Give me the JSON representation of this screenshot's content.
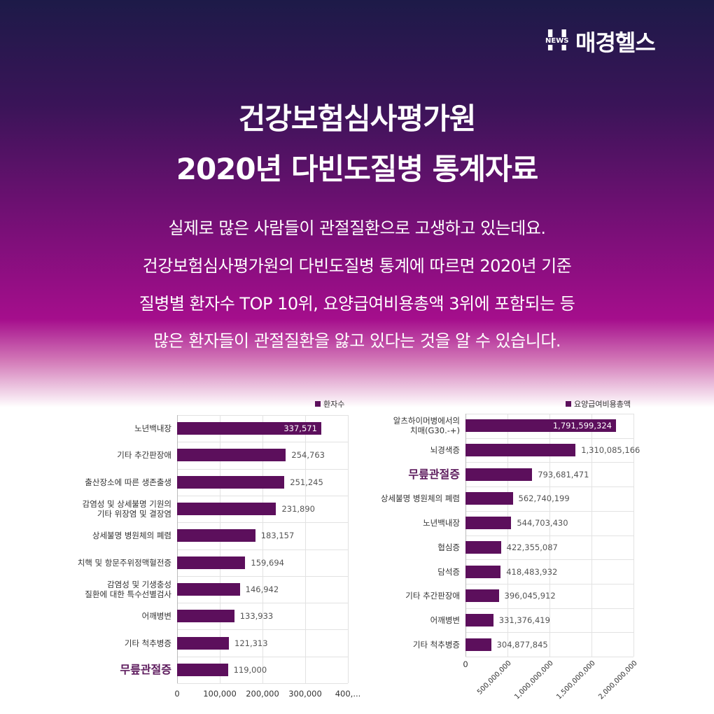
{
  "logo": {
    "mark": "H",
    "badge": "NEWS",
    "name": "매경헬스"
  },
  "title": [
    "건강보험심사평가원",
    "2020년 다빈도질병 통계자료"
  ],
  "body": [
    "실제로 많은 사람들이 관절질환으로 고생하고 있는데요.",
    "건강보험심사평가원의 다빈도질병 통계에 따르면 2020년 기준",
    "질병별 환자수 TOP 10위, 요양급여비용총액 3위에 포함되는 등",
    "많은 환자들이 관절질환을 앓고 있다는 것을 알 수 있습니다."
  ],
  "chart_data": [
    {
      "type": "barh",
      "categories": [
        "노년백내장",
        "기타 추간판장애",
        "출산장소에 따른 생존출생",
        "감염성 및 상세불명 기원의\n기타 위장염 및 결장염",
        "상세불명 병원체의 폐렴",
        "치핵 및 항문주위정맥혈전증",
        "감염성 및 기생충성\n질환에 대한 특수선별검사",
        "어깨병변",
        "기타 척추병증",
        "무릎관절증"
      ],
      "series": [
        {
          "name": "환자수",
          "color": "#5c0f5c",
          "values": [
            337571,
            254763,
            251245,
            231890,
            183157,
            159694,
            146942,
            133933,
            121313,
            119000
          ],
          "value_labels": [
            "337,571",
            "254,763",
            "251,245",
            "231,890",
            "183,157",
            "159,694",
            "146,942",
            "133,933",
            "121,313",
            "119,000"
          ]
        }
      ],
      "highlight": 9,
      "xlim": [
        0,
        400000
      ],
      "xticks": [
        0,
        {
          "value": 100000,
          "label": "100,000"
        },
        {
          "value": 200000,
          "label": "200,000"
        },
        {
          "value": 300000,
          "label": "300,000"
        },
        {
          "value": 400000,
          "label": "400,..."
        }
      ],
      "grid": true,
      "legend": "top-right"
    },
    {
      "type": "barh",
      "categories": [
        "알츠하이머병에서의\n치매(G30.-+)",
        "뇌경색증",
        "무릎관절증",
        "상세불명 병원체의 폐렴",
        "노년백내장",
        "협심증",
        "담석증",
        "기타 추간판장애",
        "어깨병변",
        "기타 척추병증"
      ],
      "series": [
        {
          "name": "요양급여비용총액",
          "color": "#5c0f5c",
          "values": [
            1791599324,
            1310085166,
            793681471,
            562740199,
            544703430,
            422355087,
            418483932,
            396045912,
            331376419,
            304877845
          ],
          "value_labels": [
            "1,791,599,324",
            "1,310,085,166",
            "793,681,471",
            "562,740,199",
            "544,703,430",
            "422,355,087",
            "418,483,932",
            "396,045,912",
            "331,376,419",
            "304,877,845"
          ]
        }
      ],
      "highlight": 2,
      "xlim": [
        0,
        2000000000
      ],
      "xticks": [
        0,
        {
          "value": 500000000,
          "label": "500,000,000"
        },
        {
          "value": 1000000000,
          "label": "1,000,000,000"
        },
        {
          "value": 1500000000,
          "label": "1,500,000,000"
        },
        {
          "value": 2000000000,
          "label": "2,000,000,000"
        }
      ],
      "xtick_rotation": 45,
      "grid": true,
      "legend": "top-right"
    }
  ]
}
